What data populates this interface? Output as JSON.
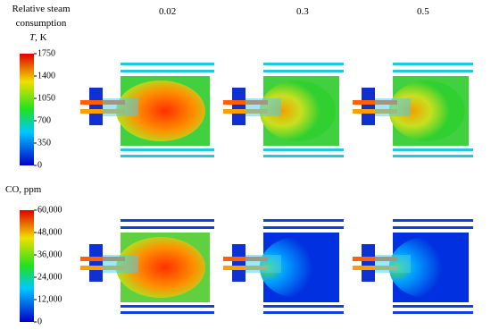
{
  "header": {
    "title": "Relative steam consumption",
    "columns": [
      "0.02",
      "0.3",
      "0.5"
    ]
  },
  "temperature": {
    "symbol": "T",
    "unit": ", K",
    "range": [
      0,
      1750
    ],
    "ticks": [
      0,
      350,
      700,
      1050,
      1400,
      1750
    ]
  },
  "co": {
    "label": "CO, ppm",
    "range": [
      0,
      60000
    ],
    "ticks": [
      {
        "value": 0,
        "label": "0"
      },
      {
        "value": 12000,
        "label": "12,000"
      },
      {
        "value": 24000,
        "label": "24,000"
      },
      {
        "value": 36000,
        "label": "36,000"
      },
      {
        "value": 48000,
        "label": "48,000"
      },
      {
        "value": 60000,
        "label": "60,000"
      }
    ]
  }
}
